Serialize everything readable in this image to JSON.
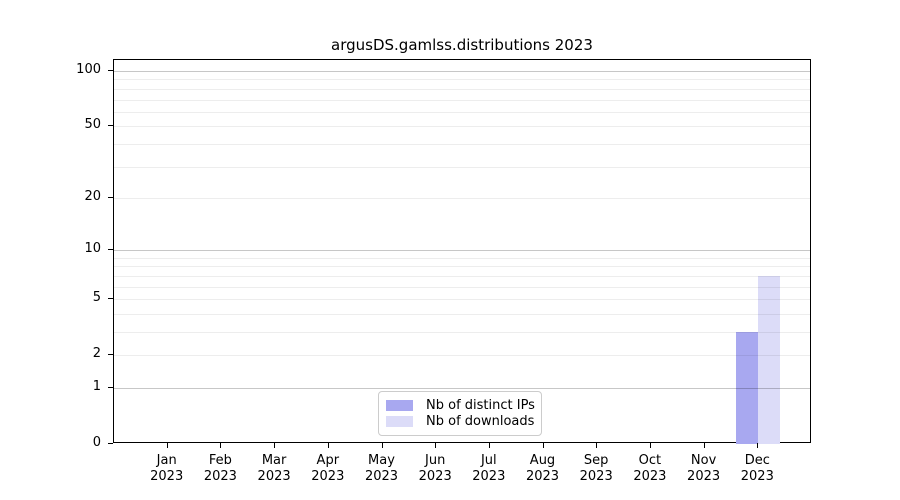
{
  "title": "argusDS.gamlss.distributions 2023",
  "chart_data": {
    "type": "bar",
    "title": "argusDS.gamlss.distributions 2023",
    "categories": [
      "Jan",
      "Feb",
      "Mar",
      "Apr",
      "May",
      "Jun",
      "Jul",
      "Aug",
      "Sep",
      "Oct",
      "Nov",
      "Dec"
    ],
    "x_year": "2023",
    "series": [
      {
        "name": "Nb of distinct IPs",
        "color": "#a8a8f0",
        "values": [
          0,
          0,
          0,
          0,
          0,
          0,
          0,
          0,
          0,
          0,
          0,
          3
        ]
      },
      {
        "name": "Nb of downloads",
        "color": "#dcdcf8",
        "values": [
          0,
          0,
          0,
          0,
          0,
          0,
          0,
          0,
          0,
          0,
          0,
          7
        ]
      }
    ],
    "yticks": [
      0,
      1,
      2,
      5,
      10,
      20,
      50,
      100
    ],
    "y_scale": "log1p",
    "ylim": [
      0,
      116
    ],
    "grid": "horizontal, log minor lines 2-9 and 20-90, major lines at 1, 10, 100",
    "legend_position": "bottom-center"
  },
  "colors": {
    "background": "#ffffff",
    "frame": "#000000",
    "text": "#000000",
    "grid_minor": "rgba(0,0,0,0.07)",
    "grid_major": "rgba(0,0,0,0.22)",
    "legend_border": "#cccccc",
    "bar_distinct_ips": "#a8a8f0",
    "bar_downloads": "#dcdcf8"
  }
}
